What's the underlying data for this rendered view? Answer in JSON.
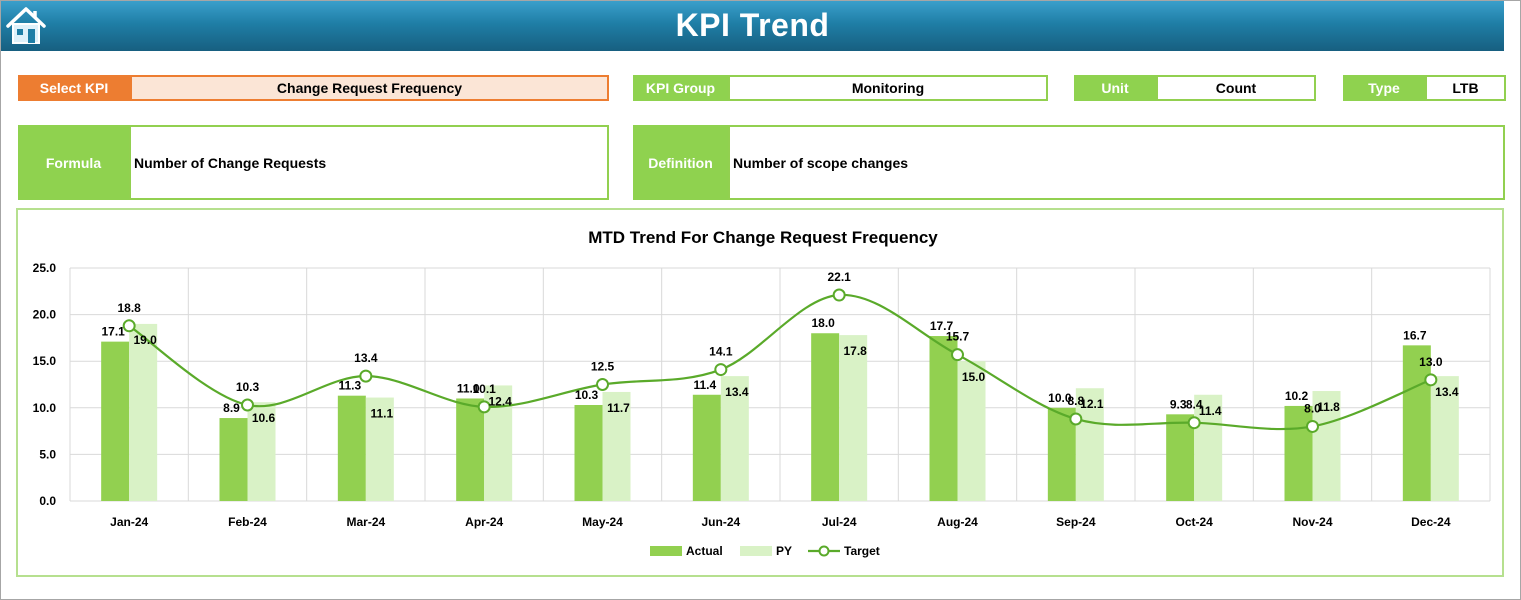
{
  "header": {
    "title": "KPI Trend"
  },
  "select_kpi": {
    "label": "Select KPI",
    "value": "Change Request Frequency"
  },
  "kpi_group": {
    "label": "KPI Group",
    "value": "Monitoring"
  },
  "unit": {
    "label": "Unit",
    "value": "Count"
  },
  "type": {
    "label": "Type",
    "value": "LTB"
  },
  "formula": {
    "label": "Formula",
    "value": "Number of Change Requests"
  },
  "definition": {
    "label": "Definition",
    "value": "Number of scope changes"
  },
  "colors": {
    "actual": "#92d050",
    "py": "#d9f2c6",
    "target": "#5aaa2a",
    "header": "#1f7ea6",
    "select_label": "#ed7d31"
  },
  "chart_data": {
    "type": "bar",
    "title": "MTD Trend For Change Request Frequency",
    "categories": [
      "Jan-24",
      "Feb-24",
      "Mar-24",
      "Apr-24",
      "May-24",
      "Jun-24",
      "Jul-24",
      "Aug-24",
      "Sep-24",
      "Oct-24",
      "Nov-24",
      "Dec-24"
    ],
    "series": [
      {
        "name": "Actual",
        "kind": "bar",
        "values": [
          17.1,
          8.9,
          11.3,
          11.0,
          10.3,
          11.4,
          18.0,
          17.7,
          10.0,
          9.3,
          10.2,
          16.7
        ]
      },
      {
        "name": "PY",
        "kind": "bar",
        "values": [
          19.0,
          10.6,
          11.1,
          12.4,
          11.7,
          13.4,
          17.8,
          15.0,
          12.1,
          11.4,
          11.8,
          13.4
        ]
      },
      {
        "name": "Target",
        "kind": "line",
        "values": [
          18.8,
          10.3,
          13.4,
          10.1,
          12.5,
          14.1,
          22.1,
          15.7,
          8.8,
          8.4,
          8.0,
          13.0
        ]
      }
    ],
    "ylim": [
      0,
      25
    ],
    "yticks": [
      "0.0",
      "5.0",
      "10.0",
      "15.0",
      "20.0",
      "25.0"
    ],
    "grid": true,
    "legend": "bottom"
  }
}
